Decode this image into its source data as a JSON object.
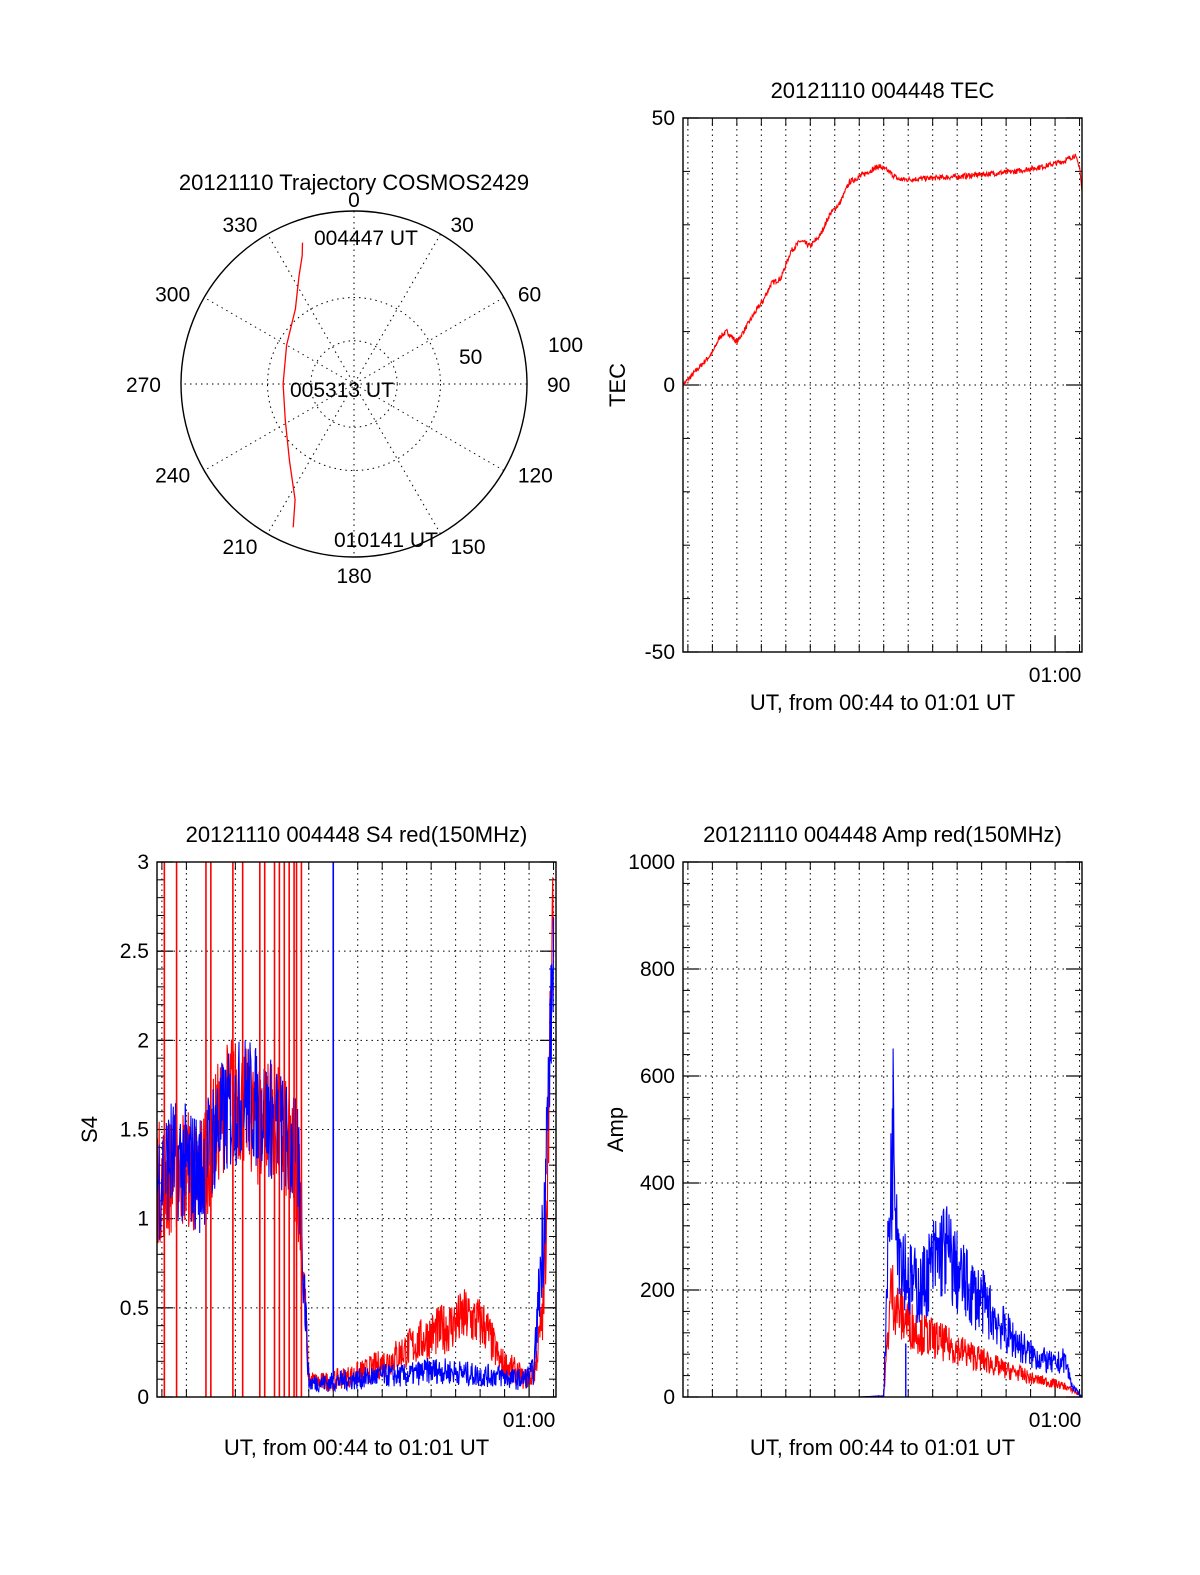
{
  "colors": {
    "red": "#ff0000",
    "blue": "#0000ff",
    "axis": "#000000"
  },
  "chart_data": [
    {
      "id": "trajectory",
      "type": "polar",
      "title": "20121110 Trajectory COSMOS2429",
      "angle_labels": [
        "0",
        "30",
        "60",
        "90",
        "120",
        "150",
        "180",
        "210",
        "240",
        "270",
        "300",
        "330"
      ],
      "radial_labels": [
        "50",
        "100"
      ],
      "radial_range": [
        0,
        100
      ],
      "annotations": [
        "004447 UT",
        "005313 UT",
        "010141 UT"
      ],
      "series": [
        {
          "color": "red",
          "points": [
            [
              340,
              87
            ],
            [
              338,
              80
            ],
            [
              333,
              70
            ],
            [
              322,
              55
            ],
            [
              300,
              45
            ],
            [
              270,
              41
            ],
            [
              242,
              45
            ],
            [
              220,
              58
            ],
            [
              207,
              75
            ],
            [
              203,
              90
            ]
          ]
        }
      ]
    },
    {
      "id": "tec",
      "type": "line",
      "title": "20121110 004448 TEC",
      "xlabel": "UT, from 00:44 to 01:01 UT",
      "ylabel": "TEC",
      "x_ticks": [
        "01:00"
      ],
      "y_ticks": [
        "50",
        "0",
        "-50"
      ],
      "xlim": [
        44.8,
        61.1
      ],
      "ylim": [
        -50,
        50
      ],
      "grid": true,
      "series": [
        {
          "color": "red",
          "x": [
            44.8,
            45.2,
            45.6,
            46.0,
            46.3,
            46.6,
            47.0,
            47.4,
            47.8,
            48.1,
            48.4,
            48.8,
            49.2,
            49.6,
            50.0,
            50.4,
            50.8,
            51.2,
            51.6,
            52.0,
            52.4,
            52.8,
            53.2,
            53.6,
            54.0,
            54.8,
            56.0,
            57.2,
            58.4,
            59.6,
            60.4,
            60.8,
            61.0,
            61.1
          ],
          "y": [
            0,
            2,
            4,
            6,
            9,
            10,
            8,
            11,
            14,
            16,
            19,
            20,
            25,
            27,
            26,
            28,
            32,
            34,
            38,
            39,
            40,
            41,
            40,
            38.5,
            38.5,
            38.7,
            39.0,
            39.5,
            40.0,
            41.0,
            42.0,
            43.0,
            41.0,
            36.0
          ]
        }
      ]
    },
    {
      "id": "s4",
      "type": "line",
      "title": "20121110 004448 S4 red(150MHz)",
      "xlabel": "UT, from 00:44 to 01:01 UT",
      "ylabel": "S4",
      "x_ticks": [
        "01:00"
      ],
      "y_ticks": [
        "0",
        "0.5",
        "1",
        "1.5",
        "2",
        "2.5",
        "3"
      ],
      "xlim": [
        44.8,
        61.1
      ],
      "ylim": [
        0,
        3
      ],
      "grid": true,
      "series": [
        {
          "color": "red",
          "x": [
            44.8,
            46.0,
            46.4,
            47.2,
            47.8,
            48.6,
            49.0,
            49.4,
            49.8,
            50.2,
            50.6,
            51.0,
            51.4,
            51.8,
            52.2,
            52.8,
            53.4,
            54.2,
            54.8,
            55.4,
            56.0,
            56.8,
            57.4,
            58.2,
            58.8,
            59.4,
            59.8,
            60.2,
            60.6,
            61.0
          ],
          "y": [
            1.2,
            1.3,
            1.2,
            1.5,
            1.7,
            1.6,
            1.5,
            1.6,
            1.5,
            1.4,
            1.2,
            0.1,
            0.08,
            0.09,
            0.1,
            0.12,
            0.15,
            0.2,
            0.25,
            0.3,
            0.35,
            0.4,
            0.45,
            0.4,
            0.2,
            0.15,
            0.1,
            0.12,
            0.5,
            2.8
          ]
        },
        {
          "color": "blue",
          "x": [
            44.8,
            45.4,
            46.0,
            46.6,
            47.2,
            47.8,
            48.4,
            49.0,
            49.6,
            50.2,
            50.6,
            51.0,
            51.4,
            51.8,
            52.2,
            53.0,
            54.0,
            55.0,
            56.0,
            57.0,
            58.0,
            58.8,
            59.4,
            59.8,
            60.2,
            60.6,
            61.0
          ],
          "y": [
            1.2,
            1.35,
            1.3,
            1.25,
            1.5,
            1.6,
            1.7,
            1.6,
            1.55,
            1.4,
            1.3,
            0.08,
            0.08,
            0.08,
            0.09,
            0.1,
            0.12,
            0.12,
            0.15,
            0.14,
            0.12,
            0.12,
            0.1,
            0.1,
            0.15,
            1.0,
            2.5
          ]
        }
      ]
    },
    {
      "id": "amp",
      "type": "line",
      "title": "20121110 004448 Amp red(150MHz)",
      "xlabel": "UT, from 00:44 to 01:01 UT",
      "ylabel": "Amp",
      "x_ticks": [
        "01:00"
      ],
      "y_ticks": [
        "0",
        "200",
        "400",
        "600",
        "800",
        "1000"
      ],
      "xlim": [
        44.8,
        61.1
      ],
      "ylim": [
        0,
        1000
      ],
      "grid": true,
      "series": [
        {
          "color": "red",
          "x": [
            44.8,
            48.0,
            52.0,
            53.0,
            53.3,
            53.6,
            54.0,
            54.5,
            55.0,
            55.5,
            56.0,
            56.5,
            57.0,
            57.5,
            58.0,
            58.5,
            59.0,
            59.5,
            60.0,
            60.4,
            60.8,
            61.1
          ],
          "y": [
            0,
            0,
            0,
            2,
            200,
            160,
            140,
            120,
            110,
            100,
            90,
            80,
            70,
            60,
            50,
            45,
            35,
            30,
            25,
            20,
            10,
            0
          ]
        },
        {
          "color": "blue",
          "x": [
            44.8,
            48.0,
            52.0,
            53.0,
            53.2,
            53.4,
            53.6,
            54.0,
            54.5,
            55.0,
            55.5,
            56.0,
            56.5,
            57.0,
            57.5,
            58.0,
            58.5,
            59.0,
            59.5,
            60.0,
            60.4,
            60.7,
            61.1
          ],
          "y": [
            0,
            0,
            0,
            2,
            300,
            520,
            300,
            220,
            200,
            250,
            280,
            230,
            200,
            180,
            150,
            120,
            100,
            80,
            70,
            60,
            70,
            20,
            0
          ]
        }
      ]
    }
  ]
}
